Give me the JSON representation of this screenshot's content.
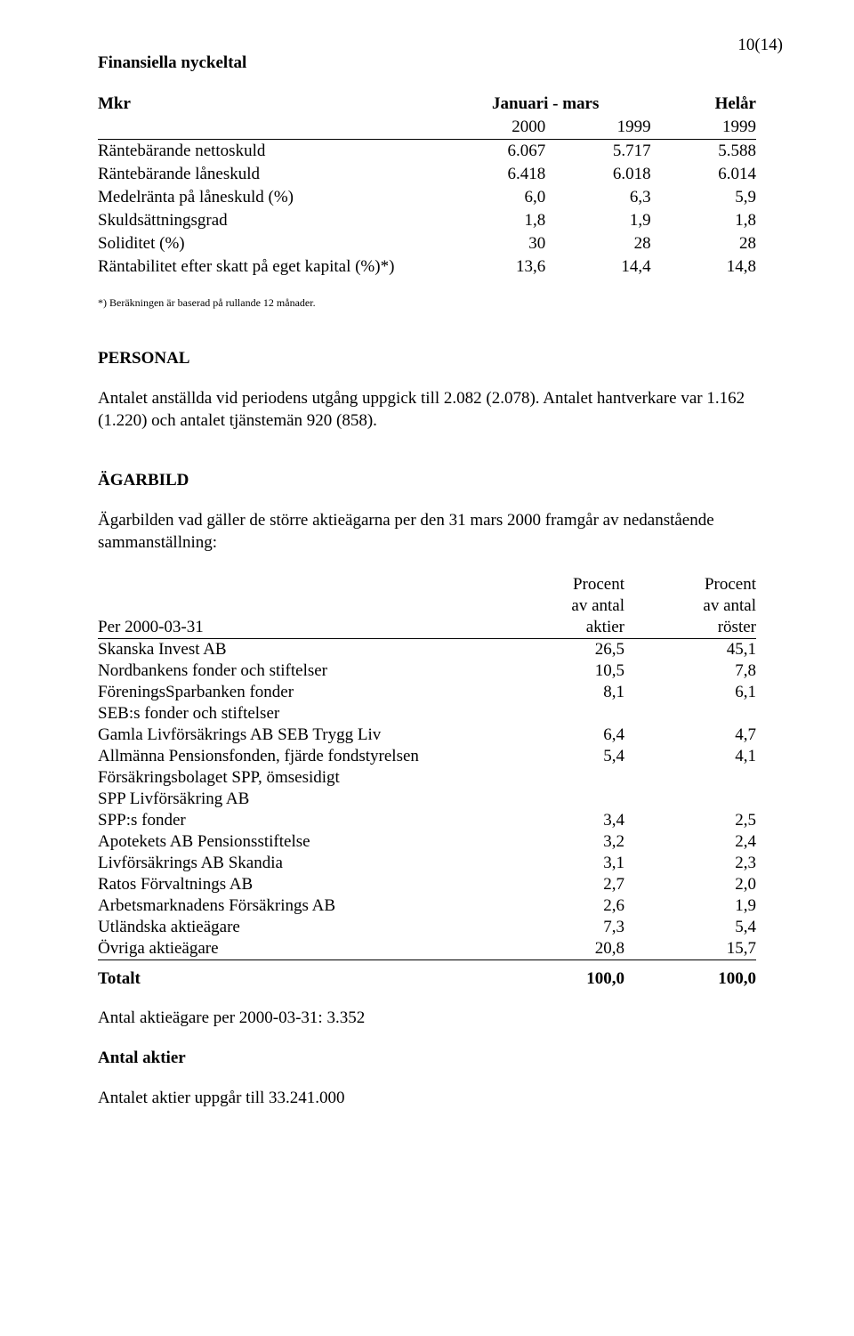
{
  "page_number": "10(14)",
  "section1": {
    "title": "Finansiella nyckeltal",
    "mkr_label": "Mkr",
    "header_period": "Januari - mars",
    "header_full": "Helår",
    "years": {
      "c1": "2000",
      "c2": "1999",
      "c3": "1999"
    },
    "rows": [
      {
        "label": "Räntebärande nettoskuld",
        "c1": "6.067",
        "c2": "5.717",
        "c3": "5.588"
      },
      {
        "label": "Räntebärande låneskuld",
        "c1": "6.418",
        "c2": "6.018",
        "c3": "6.014"
      },
      {
        "label": "Medelränta på låneskuld (%)",
        "c1": "6,0",
        "c2": "6,3",
        "c3": "5,9"
      },
      {
        "label": "Skuldsättningsgrad",
        "c1": "1,8",
        "c2": "1,9",
        "c3": "1,8"
      },
      {
        "label": "Soliditet (%)",
        "c1": "30",
        "c2": "28",
        "c3": "28"
      },
      {
        "label": "Räntabilitet efter skatt på eget kapital (%)*)",
        "c1": "13,6",
        "c2": "14,4",
        "c3": "14,8"
      }
    ],
    "footnote": "*) Beräkningen är baserad på rullande 12 månader."
  },
  "section2": {
    "title": "PERSONAL",
    "body": "Antalet anställda vid periodens utgång uppgick till 2.082 (2.078). Antalet hantverkare var 1.162 (1.220) och antalet tjänstemän 920 (858)."
  },
  "section3": {
    "title": "ÄGARBILD",
    "intro": "Ägarbilden vad gäller de större aktieägarna per den 31 mars 2000 framgår av nedanstående sammanställning:",
    "col_header": {
      "h1a": "Procent",
      "h1b": "av antal",
      "h1c": "aktier",
      "h2a": "Procent",
      "h2b": "av antal",
      "h2c": "röster",
      "left": "Per 2000-03-31"
    },
    "rows": [
      {
        "label": "Skanska Invest AB",
        "a": "26,5",
        "b": "45,1"
      },
      {
        "label": "Nordbankens fonder och stiftelser",
        "a": "10,5",
        "b": "7,8"
      },
      {
        "label": "FöreningsSparbanken fonder",
        "a": "8,1",
        "b": "6,1"
      },
      {
        "label": "SEB:s fonder och stiftelser",
        "a": "",
        "b": ""
      },
      {
        "label": "Gamla Livförsäkrings AB SEB Trygg Liv",
        "a": "6,4",
        "b": "4,7"
      },
      {
        "label": "Allmänna Pensionsfonden, fjärde fondstyrelsen",
        "a": "5,4",
        "b": "4,1"
      },
      {
        "label": "Försäkringsbolaget SPP, ömsesidigt",
        "a": "",
        "b": ""
      },
      {
        "label": "SPP Livförsäkring AB",
        "a": "",
        "b": ""
      },
      {
        "label": "SPP:s fonder",
        "a": "3,4",
        "b": "2,5"
      },
      {
        "label": "Apotekets AB Pensionsstiftelse",
        "a": "3,2",
        "b": "2,4"
      },
      {
        "label": "Livförsäkrings AB Skandia",
        "a": "3,1",
        "b": "2,3"
      },
      {
        "label": "Ratos Förvaltnings AB",
        "a": "2,7",
        "b": "2,0"
      },
      {
        "label": "Arbetsmarknadens Försäkrings AB",
        "a": "2,6",
        "b": "1,9"
      },
      {
        "label": "Utländska aktieägare",
        "a": "7,3",
        "b": "5,4"
      },
      {
        "label": "Övriga aktieägare",
        "a": "20,8",
        "b": "15,7"
      }
    ],
    "total": {
      "label": "Totalt",
      "a": "100,0",
      "b": "100,0"
    },
    "shareholders": "Antal aktieägare per 2000-03-31: 3.352",
    "shares_title": "Antal aktier",
    "shares_body": "Antalet aktier uppgår till 33.241.000"
  }
}
